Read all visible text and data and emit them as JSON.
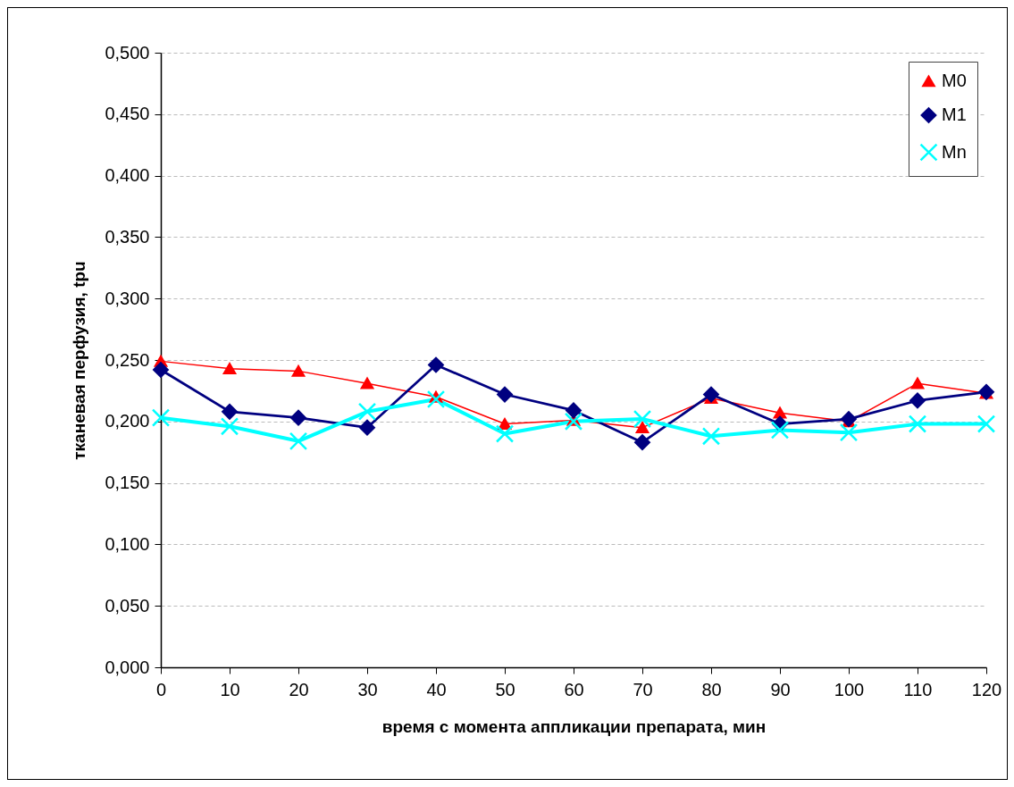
{
  "chart_data": {
    "type": "line",
    "xlabel": "время с момента аппликации препарата, мин",
    "ylabel": "тканевая перфузия, tpu",
    "x": [
      0,
      10,
      20,
      30,
      40,
      50,
      60,
      70,
      80,
      90,
      100,
      110,
      120
    ],
    "series": [
      {
        "name": "M0",
        "color": "#ff0000",
        "marker": "triangle",
        "values": [
          0.249,
          0.243,
          0.241,
          0.231,
          0.22,
          0.198,
          0.201,
          0.195,
          0.219,
          0.207,
          0.2,
          0.231,
          0.223
        ]
      },
      {
        "name": "M1",
        "color": "#000080",
        "marker": "diamond",
        "values": [
          0.242,
          0.208,
          0.203,
          0.195,
          0.246,
          0.222,
          0.209,
          0.183,
          0.222,
          0.198,
          0.202,
          0.217,
          0.224
        ]
      },
      {
        "name": "Mn",
        "color": "#00ffff",
        "marker": "cross",
        "values": [
          0.203,
          0.196,
          0.184,
          0.208,
          0.218,
          0.19,
          0.2,
          0.202,
          0.188,
          0.193,
          0.191,
          0.198,
          0.198
        ]
      }
    ],
    "xlim": [
      0,
      120
    ],
    "xticks": [
      0,
      10,
      20,
      30,
      40,
      50,
      60,
      70,
      80,
      90,
      100,
      110,
      120
    ],
    "ylim": [
      0,
      0.5
    ],
    "yticks": [
      {
        "value": 0,
        "label": "0,000"
      },
      {
        "value": 0.05,
        "label": "0,050"
      },
      {
        "value": 0.1,
        "label": "0,100"
      },
      {
        "value": 0.15,
        "label": "0,150"
      },
      {
        "value": 0.2,
        "label": "0,200"
      },
      {
        "value": 0.25,
        "label": "0,250"
      },
      {
        "value": 0.3,
        "label": "0,300"
      },
      {
        "value": 0.35,
        "label": "0,350"
      },
      {
        "value": 0.4,
        "label": "0,400"
      },
      {
        "value": 0.45,
        "label": "0,450"
      },
      {
        "value": 0.5,
        "label": "0,500"
      }
    ],
    "grid": "y",
    "legend": "top right"
  }
}
